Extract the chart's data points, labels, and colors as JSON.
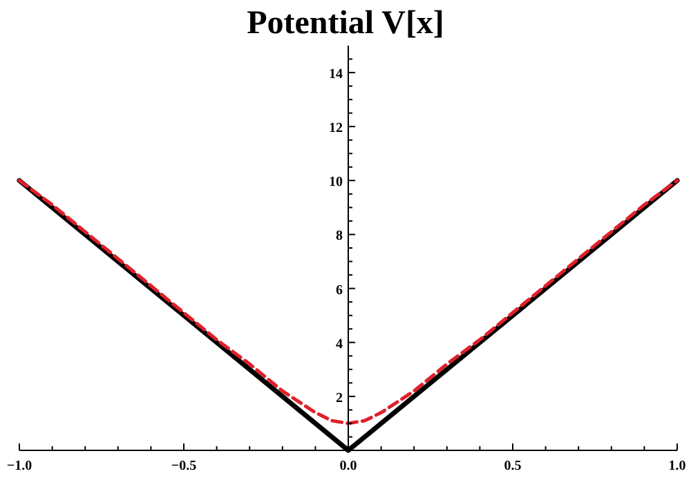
{
  "chart_data": {
    "type": "line",
    "title": "Potential V[x]",
    "xlim": [
      -1,
      1
    ],
    "ylim": [
      0,
      15
    ],
    "xticks": [
      {
        "value": -1,
        "label": "−1.0"
      },
      {
        "value": -0.9,
        "label": null
      },
      {
        "value": -0.8,
        "label": null
      },
      {
        "value": -0.7,
        "label": null
      },
      {
        "value": -0.6,
        "label": null
      },
      {
        "value": -0.5,
        "label": "−0.5"
      },
      {
        "value": -0.4,
        "label": null
      },
      {
        "value": -0.3,
        "label": null
      },
      {
        "value": -0.2,
        "label": null
      },
      {
        "value": -0.1,
        "label": null
      },
      {
        "value": 0,
        "label": "0.0"
      },
      {
        "value": 0.1,
        "label": null
      },
      {
        "value": 0.2,
        "label": null
      },
      {
        "value": 0.3,
        "label": null
      },
      {
        "value": 0.4,
        "label": null
      },
      {
        "value": 0.5,
        "label": "0.5"
      },
      {
        "value": 0.6,
        "label": null
      },
      {
        "value": 0.7,
        "label": null
      },
      {
        "value": 0.8,
        "label": null
      },
      {
        "value": 0.9,
        "label": null
      },
      {
        "value": 1,
        "label": "1.0"
      }
    ],
    "yticks": [
      {
        "value": 0.5,
        "label": null
      },
      {
        "value": 1,
        "label": null
      },
      {
        "value": 1.5,
        "label": null
      },
      2,
      {
        "value": 2.5,
        "label": null
      },
      {
        "value": 3,
        "label": null
      },
      {
        "value": 3.5,
        "label": null
      },
      4,
      {
        "value": 4.5,
        "label": null
      },
      {
        "value": 5,
        "label": null
      },
      {
        "value": 5.5,
        "label": null
      },
      6,
      {
        "value": 6.5,
        "label": null
      },
      {
        "value": 7,
        "label": null
      },
      {
        "value": 7.5,
        "label": null
      },
      8,
      {
        "value": 8.5,
        "label": null
      },
      {
        "value": 9,
        "label": null
      },
      {
        "value": 9.5,
        "label": null
      },
      10,
      {
        "value": 10.5,
        "label": null
      },
      {
        "value": 11,
        "label": null
      },
      {
        "value": 11.5,
        "label": null
      },
      12,
      {
        "value": 12.5,
        "label": null
      },
      {
        "value": 13,
        "label": null
      },
      {
        "value": 13.5,
        "label": null
      },
      14,
      {
        "value": 14.5,
        "label": null
      }
    ],
    "series": [
      {
        "color": "#000000",
        "line_style": "solid",
        "x": [
          -1,
          0,
          1
        ],
        "values": [
          10,
          0,
          10
        ]
      },
      {
        "color": "#e0202a",
        "line_style": "dashed",
        "x": [
          -1,
          -0.9,
          -0.8,
          -0.7,
          -0.6,
          -0.5,
          -0.4,
          -0.3,
          -0.2,
          -0.15,
          -0.1,
          -0.05,
          0,
          0.05,
          0.1,
          0.15,
          0.2,
          0.3,
          0.4,
          0.5,
          0.6,
          0.7,
          0.8,
          0.9,
          1
        ],
        "values": [
          10.0,
          9.1,
          8.1,
          7.1,
          6.1,
          5.1,
          4.1,
          3.2,
          2.2,
          1.8,
          1.4,
          1.1,
          1.0,
          1.1,
          1.4,
          1.8,
          2.2,
          3.2,
          4.1,
          5.1,
          6.1,
          7.1,
          8.1,
          9.1,
          10.0
        ]
      }
    ]
  }
}
